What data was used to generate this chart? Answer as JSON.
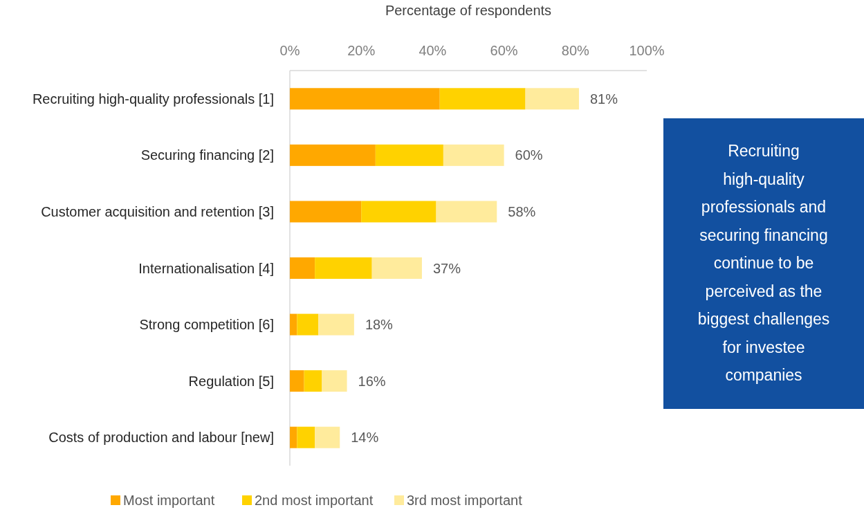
{
  "chart_data": {
    "type": "bar",
    "orientation": "horizontal",
    "stacked": true,
    "xlabel": "Percentage of respondents",
    "categories": [
      "Recruiting high-quality professionals [1]",
      "Securing financing [2]",
      "Customer acquisition and retention [3]",
      "Internationalisation [4]",
      "Strong competition [6]",
      "Regulation [5]",
      "Costs of production and labour [new]"
    ],
    "series": [
      {
        "name": "Most important",
        "color": "#ffa800",
        "values": [
          42,
          24,
          20,
          7,
          2,
          4,
          2
        ]
      },
      {
        "name": "2nd most important",
        "color": "#ffd200",
        "values": [
          24,
          19,
          21,
          16,
          6,
          5,
          5
        ]
      },
      {
        "name": "3rd most important",
        "color": "#ffeb9c",
        "values": [
          15,
          17,
          17,
          14,
          10,
          7,
          7
        ]
      }
    ],
    "totals": [
      "81%",
      "60%",
      "58%",
      "37%",
      "18%",
      "16%",
      "14%"
    ],
    "xlim": [
      0,
      100
    ],
    "xticks": [
      {
        "value": 0,
        "label": "0%"
      },
      {
        "value": 20,
        "label": "20%"
      },
      {
        "value": 40,
        "label": "40%"
      },
      {
        "value": 60,
        "label": "60%"
      },
      {
        "value": 80,
        "label": "80%"
      },
      {
        "value": 100,
        "label": "100%"
      }
    ],
    "grid": false,
    "legend": "bottom",
    "annotations": [
      "Recruiting high-quality professionals and securing financing continue to be perceived as the biggest challenges for investee companies"
    ]
  }
}
